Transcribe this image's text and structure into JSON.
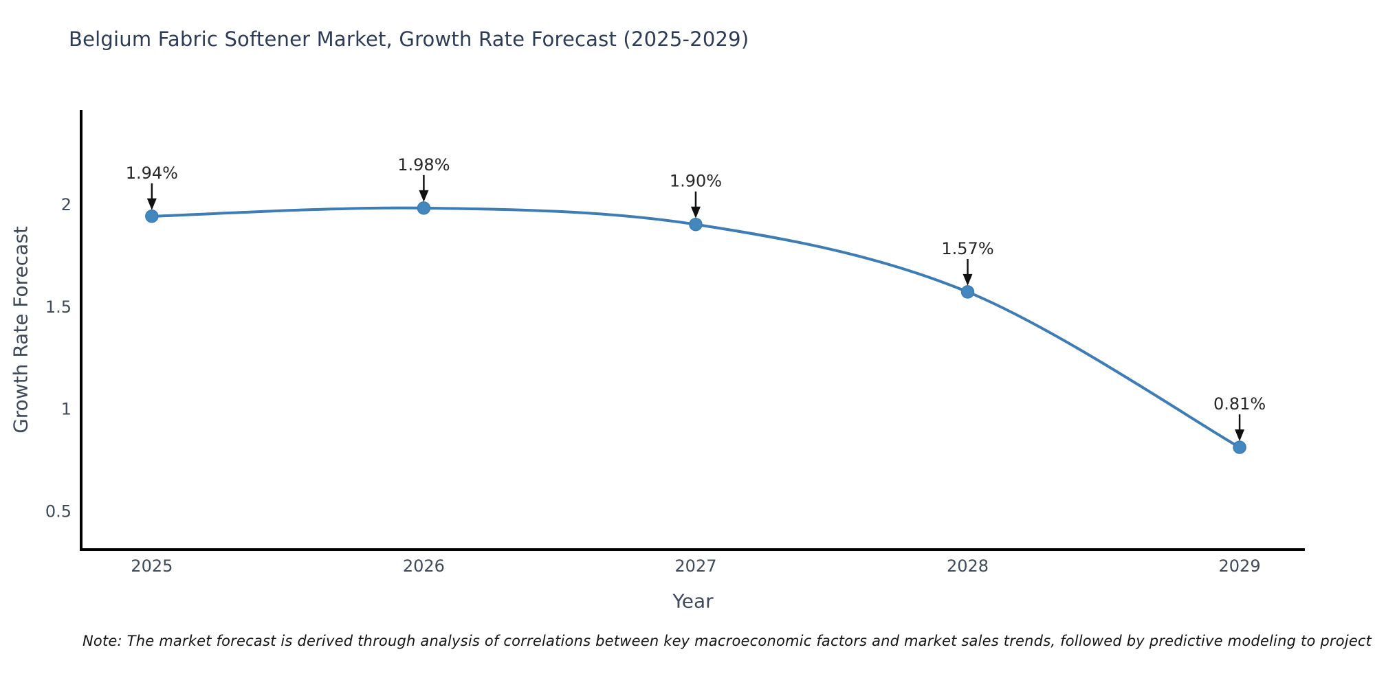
{
  "chart_data": {
    "type": "line",
    "title": "Belgium Fabric Softener Market, Growth Rate Forecast (2025-2029)",
    "xlabel": "Year",
    "ylabel": "Growth Rate Forecast",
    "x": [
      2025,
      2026,
      2027,
      2028,
      2029
    ],
    "xticklabels": [
      "2025",
      "2026",
      "2027",
      "2028",
      "2029"
    ],
    "values": [
      1.94,
      1.98,
      1.9,
      1.57,
      0.81
    ],
    "point_labels": [
      "1.94%",
      "1.98%",
      "1.90%",
      "1.57%",
      "0.81%"
    ],
    "yticks": [
      0.5,
      1,
      1.5,
      2
    ],
    "ylim": [
      0.31,
      2.46
    ],
    "xlim": [
      2024.74,
      2029.24
    ],
    "grid": false,
    "legend_position": "none",
    "line_shape": "spline",
    "marker_size": 9
  },
  "note": "Note: The market forecast is derived through analysis of correlations between key macroeconomic factors and market sales trends, followed by predictive modeling to project future sales",
  "colors": {
    "line": "#3d7cb5",
    "marker": "#4387bf",
    "axis_line": "#000000",
    "axis_text": "#3e4a5a",
    "title_text": "#2e3b55",
    "annotation_text": "#262626",
    "arrow": "#111111",
    "background": "#ffffff"
  }
}
